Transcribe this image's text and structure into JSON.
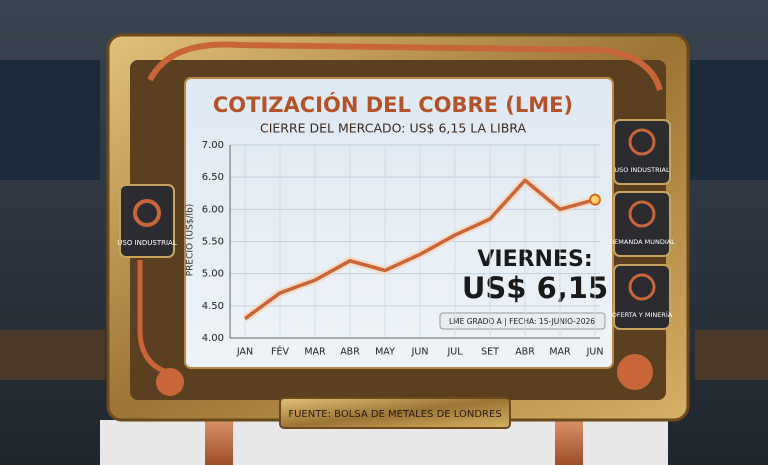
{
  "chart_data": {
    "type": "line",
    "title": "COTIZACIÓN DEL COBRE (LME)",
    "subtitle": "CIERRE DEL MERCADO: US$ 6,15 LA LIBRA",
    "y_label": "PRECIO (US$/lb)",
    "categories": [
      "JAN",
      "FÉV",
      "MAR",
      "ABR",
      "MAY",
      "JUN",
      "JUL",
      "SET",
      "ABR",
      "MAR",
      "JUN"
    ],
    "series": [
      {
        "name": "Cobre",
        "color": "#c8663a",
        "values": [
          4.3,
          4.7,
          4.9,
          5.2,
          5.05,
          5.3,
          5.6,
          5.85,
          6.45,
          6.0,
          6.15
        ]
      }
    ],
    "ylim": [
      4.0,
      7.0
    ],
    "yticks": [
      {
        "value": 4.0,
        "label": "4.00"
      },
      {
        "value": 4.5,
        "label": "4.50"
      },
      {
        "value": 5.0,
        "label": "5.00"
      },
      {
        "value": 5.5,
        "label": "5.50"
      },
      {
        "value": 6.0,
        "label": "6.00"
      },
      {
        "value": 6.5,
        "label": "6.50"
      },
      {
        "value": 7.0,
        "label": "7.00"
      }
    ],
    "grid": true,
    "annotations": {
      "day": "VIERNES:",
      "price": "US$ 6,15",
      "grade": "LME GRADO A | FECHA: 15-JUNIO-2026"
    },
    "source": "FUENTE: BOLSA DE METALES DE LONDRES",
    "left_badge": "USO INDUSTRIAL",
    "right_badges": [
      "USO INDUSTRIAL",
      "DEMANDA MUNDIAL",
      "OFERTA Y MINERÍA"
    ]
  }
}
